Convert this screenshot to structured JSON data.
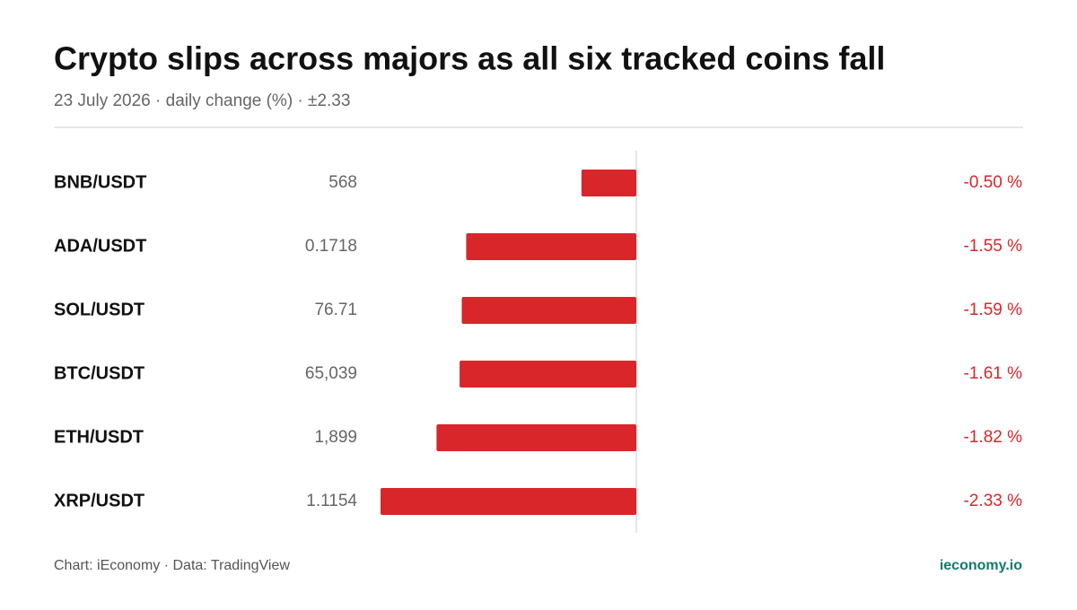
{
  "chart_data": {
    "type": "bar",
    "orientation": "horizontal",
    "title": "Crypto slips across majors as all six tracked coins fall",
    "subtitle": "23 July 2026 · daily change (%) · ±2.33",
    "categories": [
      "BNB/USDT",
      "ADA/USDT",
      "SOL/USDT",
      "BTC/USDT",
      "ETH/USDT",
      "XRP/USDT"
    ],
    "prices": [
      "568",
      "0.1718",
      "76.71",
      "65,039",
      "1,899",
      "1.1154"
    ],
    "values": [
      -0.5,
      -1.55,
      -1.59,
      -1.61,
      -1.82,
      -2.33
    ],
    "value_labels": [
      "-0.50 %",
      "-1.55 %",
      "-1.59 %",
      "-1.61 %",
      "-1.82 %",
      "-2.33 %"
    ],
    "color": "#d9262b",
    "xlim": [
      -2.33,
      2.33
    ],
    "source": "Chart: iEconomy · Data: TradingView",
    "brand": "ieconomy.io"
  }
}
